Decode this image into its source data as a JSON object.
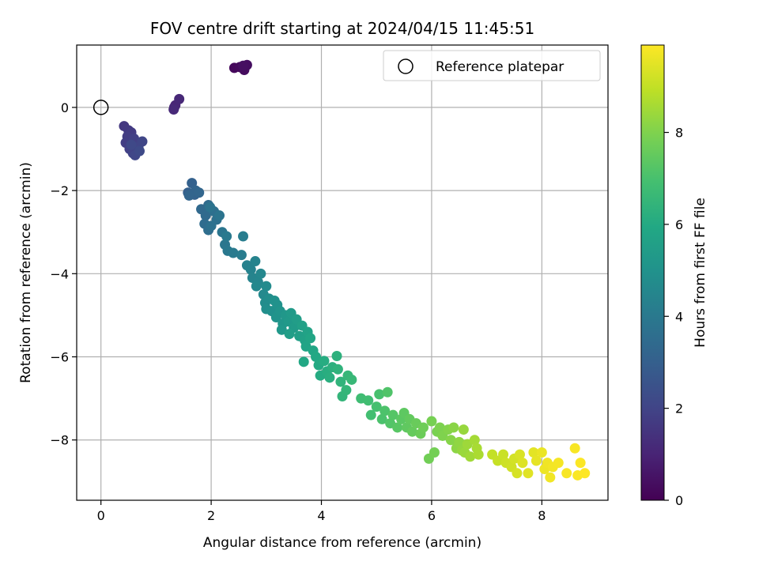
{
  "chart_data": {
    "type": "scatter",
    "title": "FOV centre drift starting at 2024/04/15 11:45:51",
    "xlabel": "Angular distance from reference (arcmin)",
    "ylabel": "Rotation from reference (arcmin)",
    "xlim": [
      -0.44,
      9.2
    ],
    "ylim": [
      -9.45,
      1.5
    ],
    "xticks": [
      0,
      2,
      4,
      6,
      8
    ],
    "yticks": [
      0,
      -2,
      -4,
      -6,
      -8
    ],
    "grid": true,
    "colormap": "viridis",
    "colorbar": {
      "label": "Hours from first FF file",
      "range": [
        0,
        9.9
      ],
      "ticks": [
        0,
        2,
        4,
        6,
        8
      ]
    },
    "legend": {
      "placement": "top-right",
      "entries": [
        {
          "label": "Reference platepar",
          "marker": "hollow-circle"
        }
      ]
    },
    "reference_point": {
      "x": 0,
      "y": 0
    },
    "series": [
      {
        "points": [
          [
            2.42,
            0.95,
            0.2
          ],
          [
            2.52,
            0.97,
            0.25
          ],
          [
            2.6,
            0.9,
            0.3
          ],
          [
            2.65,
            1.02,
            0.35
          ],
          [
            2.58,
            1.0,
            0.4
          ],
          [
            1.33,
            0.0,
            1.0
          ],
          [
            1.35,
            0.05,
            1.05
          ],
          [
            1.42,
            0.2,
            1.1
          ],
          [
            1.32,
            -0.05,
            1.15
          ],
          [
            0.42,
            -0.45,
            1.6
          ],
          [
            0.5,
            -0.55,
            1.65
          ],
          [
            0.55,
            -0.6,
            1.7
          ],
          [
            0.48,
            -0.7,
            1.75
          ],
          [
            0.45,
            -0.85,
            1.8
          ],
          [
            0.6,
            -0.75,
            1.85
          ],
          [
            0.52,
            -1.0,
            1.9
          ],
          [
            0.58,
            -1.1,
            1.95
          ],
          [
            0.68,
            -0.95,
            2.0
          ],
          [
            0.75,
            -0.82,
            2.05
          ],
          [
            0.62,
            -1.15,
            2.1
          ],
          [
            0.55,
            -0.9,
            2.15
          ],
          [
            0.7,
            -1.05,
            2.2
          ],
          [
            1.58,
            -2.05,
            3.0
          ],
          [
            1.65,
            -1.82,
            3.05
          ],
          [
            1.7,
            -2.1,
            3.1
          ],
          [
            1.72,
            -2.0,
            3.15
          ],
          [
            1.6,
            -2.12,
            3.2
          ],
          [
            1.78,
            -2.05,
            3.25
          ],
          [
            1.82,
            -2.45,
            3.35
          ],
          [
            1.9,
            -2.6,
            3.4
          ],
          [
            1.95,
            -2.35,
            3.45
          ],
          [
            1.88,
            -2.8,
            3.5
          ],
          [
            1.95,
            -2.95,
            3.55
          ],
          [
            2.05,
            -2.5,
            3.6
          ],
          [
            2.1,
            -2.7,
            3.65
          ],
          [
            2.0,
            -2.85,
            3.7
          ],
          [
            1.98,
            -2.4,
            3.75
          ],
          [
            2.15,
            -2.6,
            3.8
          ],
          [
            2.2,
            -3.0,
            3.85
          ],
          [
            2.25,
            -3.3,
            3.9
          ],
          [
            2.3,
            -3.45,
            3.95
          ],
          [
            2.28,
            -3.1,
            4.0
          ],
          [
            2.4,
            -3.5,
            4.05
          ],
          [
            2.55,
            -3.55,
            4.1
          ],
          [
            2.58,
            -3.1,
            4.15
          ],
          [
            2.65,
            -3.8,
            4.3
          ],
          [
            2.72,
            -3.9,
            4.35
          ],
          [
            2.8,
            -3.7,
            4.4
          ],
          [
            2.75,
            -4.1,
            4.45
          ],
          [
            2.85,
            -4.2,
            4.5
          ],
          [
            2.9,
            -4.0,
            4.55
          ],
          [
            2.82,
            -4.3,
            4.6
          ],
          [
            2.95,
            -4.5,
            4.65
          ],
          [
            3.0,
            -4.3,
            4.7
          ],
          [
            2.98,
            -4.7,
            4.75
          ],
          [
            3.05,
            -4.6,
            4.8
          ],
          [
            3.0,
            -4.85,
            4.85
          ],
          [
            3.1,
            -4.9,
            4.9
          ],
          [
            3.15,
            -4.65,
            4.95
          ],
          [
            3.2,
            -4.75,
            5.0
          ],
          [
            3.18,
            -5.05,
            5.05
          ],
          [
            3.25,
            -4.9,
            5.1
          ],
          [
            3.3,
            -5.2,
            5.15
          ],
          [
            3.35,
            -5.0,
            5.2
          ],
          [
            3.28,
            -5.35,
            5.25
          ],
          [
            3.4,
            -5.15,
            5.3
          ],
          [
            3.45,
            -4.95,
            5.35
          ],
          [
            3.5,
            -5.3,
            5.4
          ],
          [
            3.55,
            -5.1,
            5.45
          ],
          [
            3.42,
            -5.45,
            5.5
          ],
          [
            3.6,
            -5.5,
            5.55
          ],
          [
            3.65,
            -5.25,
            5.6
          ],
          [
            3.7,
            -5.6,
            5.65
          ],
          [
            3.75,
            -5.4,
            5.7
          ],
          [
            3.72,
            -5.75,
            5.75
          ],
          [
            3.8,
            -5.55,
            5.8
          ],
          [
            3.85,
            -5.85,
            5.85
          ],
          [
            3.68,
            -6.12,
            5.9
          ],
          [
            3.9,
            -6.0,
            5.95
          ],
          [
            3.95,
            -6.2,
            6.0
          ],
          [
            3.98,
            -6.45,
            6.05
          ],
          [
            4.05,
            -6.1,
            6.1
          ],
          [
            4.1,
            -6.35,
            6.15
          ],
          [
            4.15,
            -6.5,
            6.2
          ],
          [
            4.2,
            -6.25,
            6.25
          ],
          [
            4.28,
            -5.98,
            6.3
          ],
          [
            4.3,
            -6.3,
            6.35
          ],
          [
            4.35,
            -6.6,
            6.4
          ],
          [
            4.38,
            -6.95,
            6.45
          ],
          [
            4.45,
            -6.8,
            6.5
          ],
          [
            4.48,
            -6.45,
            6.55
          ],
          [
            4.55,
            -6.55,
            6.6
          ],
          [
            4.72,
            -7.0,
            6.8
          ],
          [
            4.85,
            -7.05,
            6.85
          ],
          [
            4.9,
            -7.4,
            6.9
          ],
          [
            5.0,
            -7.2,
            6.95
          ],
          [
            5.05,
            -6.9,
            7.0
          ],
          [
            5.1,
            -7.5,
            7.05
          ],
          [
            5.15,
            -7.3,
            7.1
          ],
          [
            5.2,
            -6.85,
            7.15
          ],
          [
            5.25,
            -7.6,
            7.2
          ],
          [
            5.3,
            -7.4,
            7.25
          ],
          [
            5.38,
            -7.7,
            7.3
          ],
          [
            5.45,
            -7.5,
            7.35
          ],
          [
            5.5,
            -7.35,
            7.4
          ],
          [
            5.55,
            -7.7,
            7.45
          ],
          [
            5.6,
            -7.5,
            7.5
          ],
          [
            5.65,
            -7.8,
            7.55
          ],
          [
            5.72,
            -7.6,
            7.6
          ],
          [
            5.8,
            -7.85,
            7.65
          ],
          [
            5.85,
            -7.7,
            7.7
          ],
          [
            5.95,
            -8.45,
            7.75
          ],
          [
            6.05,
            -8.3,
            7.8
          ],
          [
            6.0,
            -7.55,
            7.85
          ],
          [
            6.1,
            -7.8,
            7.9
          ],
          [
            6.15,
            -7.7,
            7.95
          ],
          [
            6.2,
            -7.9,
            8.0
          ],
          [
            6.3,
            -7.75,
            8.05
          ],
          [
            6.35,
            -8.0,
            8.1
          ],
          [
            6.4,
            -7.7,
            8.15
          ],
          [
            6.45,
            -8.2,
            8.2
          ],
          [
            6.5,
            -8.05,
            8.25
          ],
          [
            6.55,
            -8.25,
            8.3
          ],
          [
            6.58,
            -7.75,
            8.35
          ],
          [
            6.6,
            -8.3,
            8.4
          ],
          [
            6.65,
            -8.1,
            8.45
          ],
          [
            6.7,
            -8.4,
            8.5
          ],
          [
            6.78,
            -8.0,
            8.55
          ],
          [
            6.82,
            -8.2,
            8.6
          ],
          [
            6.85,
            -8.35,
            8.65
          ],
          [
            7.1,
            -8.35,
            9.0
          ],
          [
            7.2,
            -8.5,
            9.05
          ],
          [
            7.3,
            -8.35,
            9.1
          ],
          [
            7.35,
            -8.55,
            9.15
          ],
          [
            7.45,
            -8.65,
            9.2
          ],
          [
            7.5,
            -8.45,
            9.25
          ],
          [
            7.55,
            -8.8,
            9.3
          ],
          [
            7.6,
            -8.35,
            9.35
          ],
          [
            7.65,
            -8.55,
            9.4
          ],
          [
            7.75,
            -8.8,
            9.45
          ],
          [
            7.85,
            -8.3,
            9.5
          ],
          [
            7.9,
            -8.5,
            9.55
          ],
          [
            8.0,
            -8.3,
            9.6
          ],
          [
            8.05,
            -8.7,
            9.65
          ],
          [
            8.1,
            -8.55,
            9.7
          ],
          [
            8.15,
            -8.9,
            9.72
          ],
          [
            8.2,
            -8.65,
            9.75
          ],
          [
            8.3,
            -8.55,
            9.78
          ],
          [
            8.45,
            -8.8,
            9.8
          ],
          [
            8.6,
            -8.2,
            9.82
          ],
          [
            8.65,
            -8.85,
            9.85
          ],
          [
            8.7,
            -8.55,
            9.87
          ],
          [
            8.78,
            -8.8,
            9.9
          ]
        ]
      }
    ]
  }
}
